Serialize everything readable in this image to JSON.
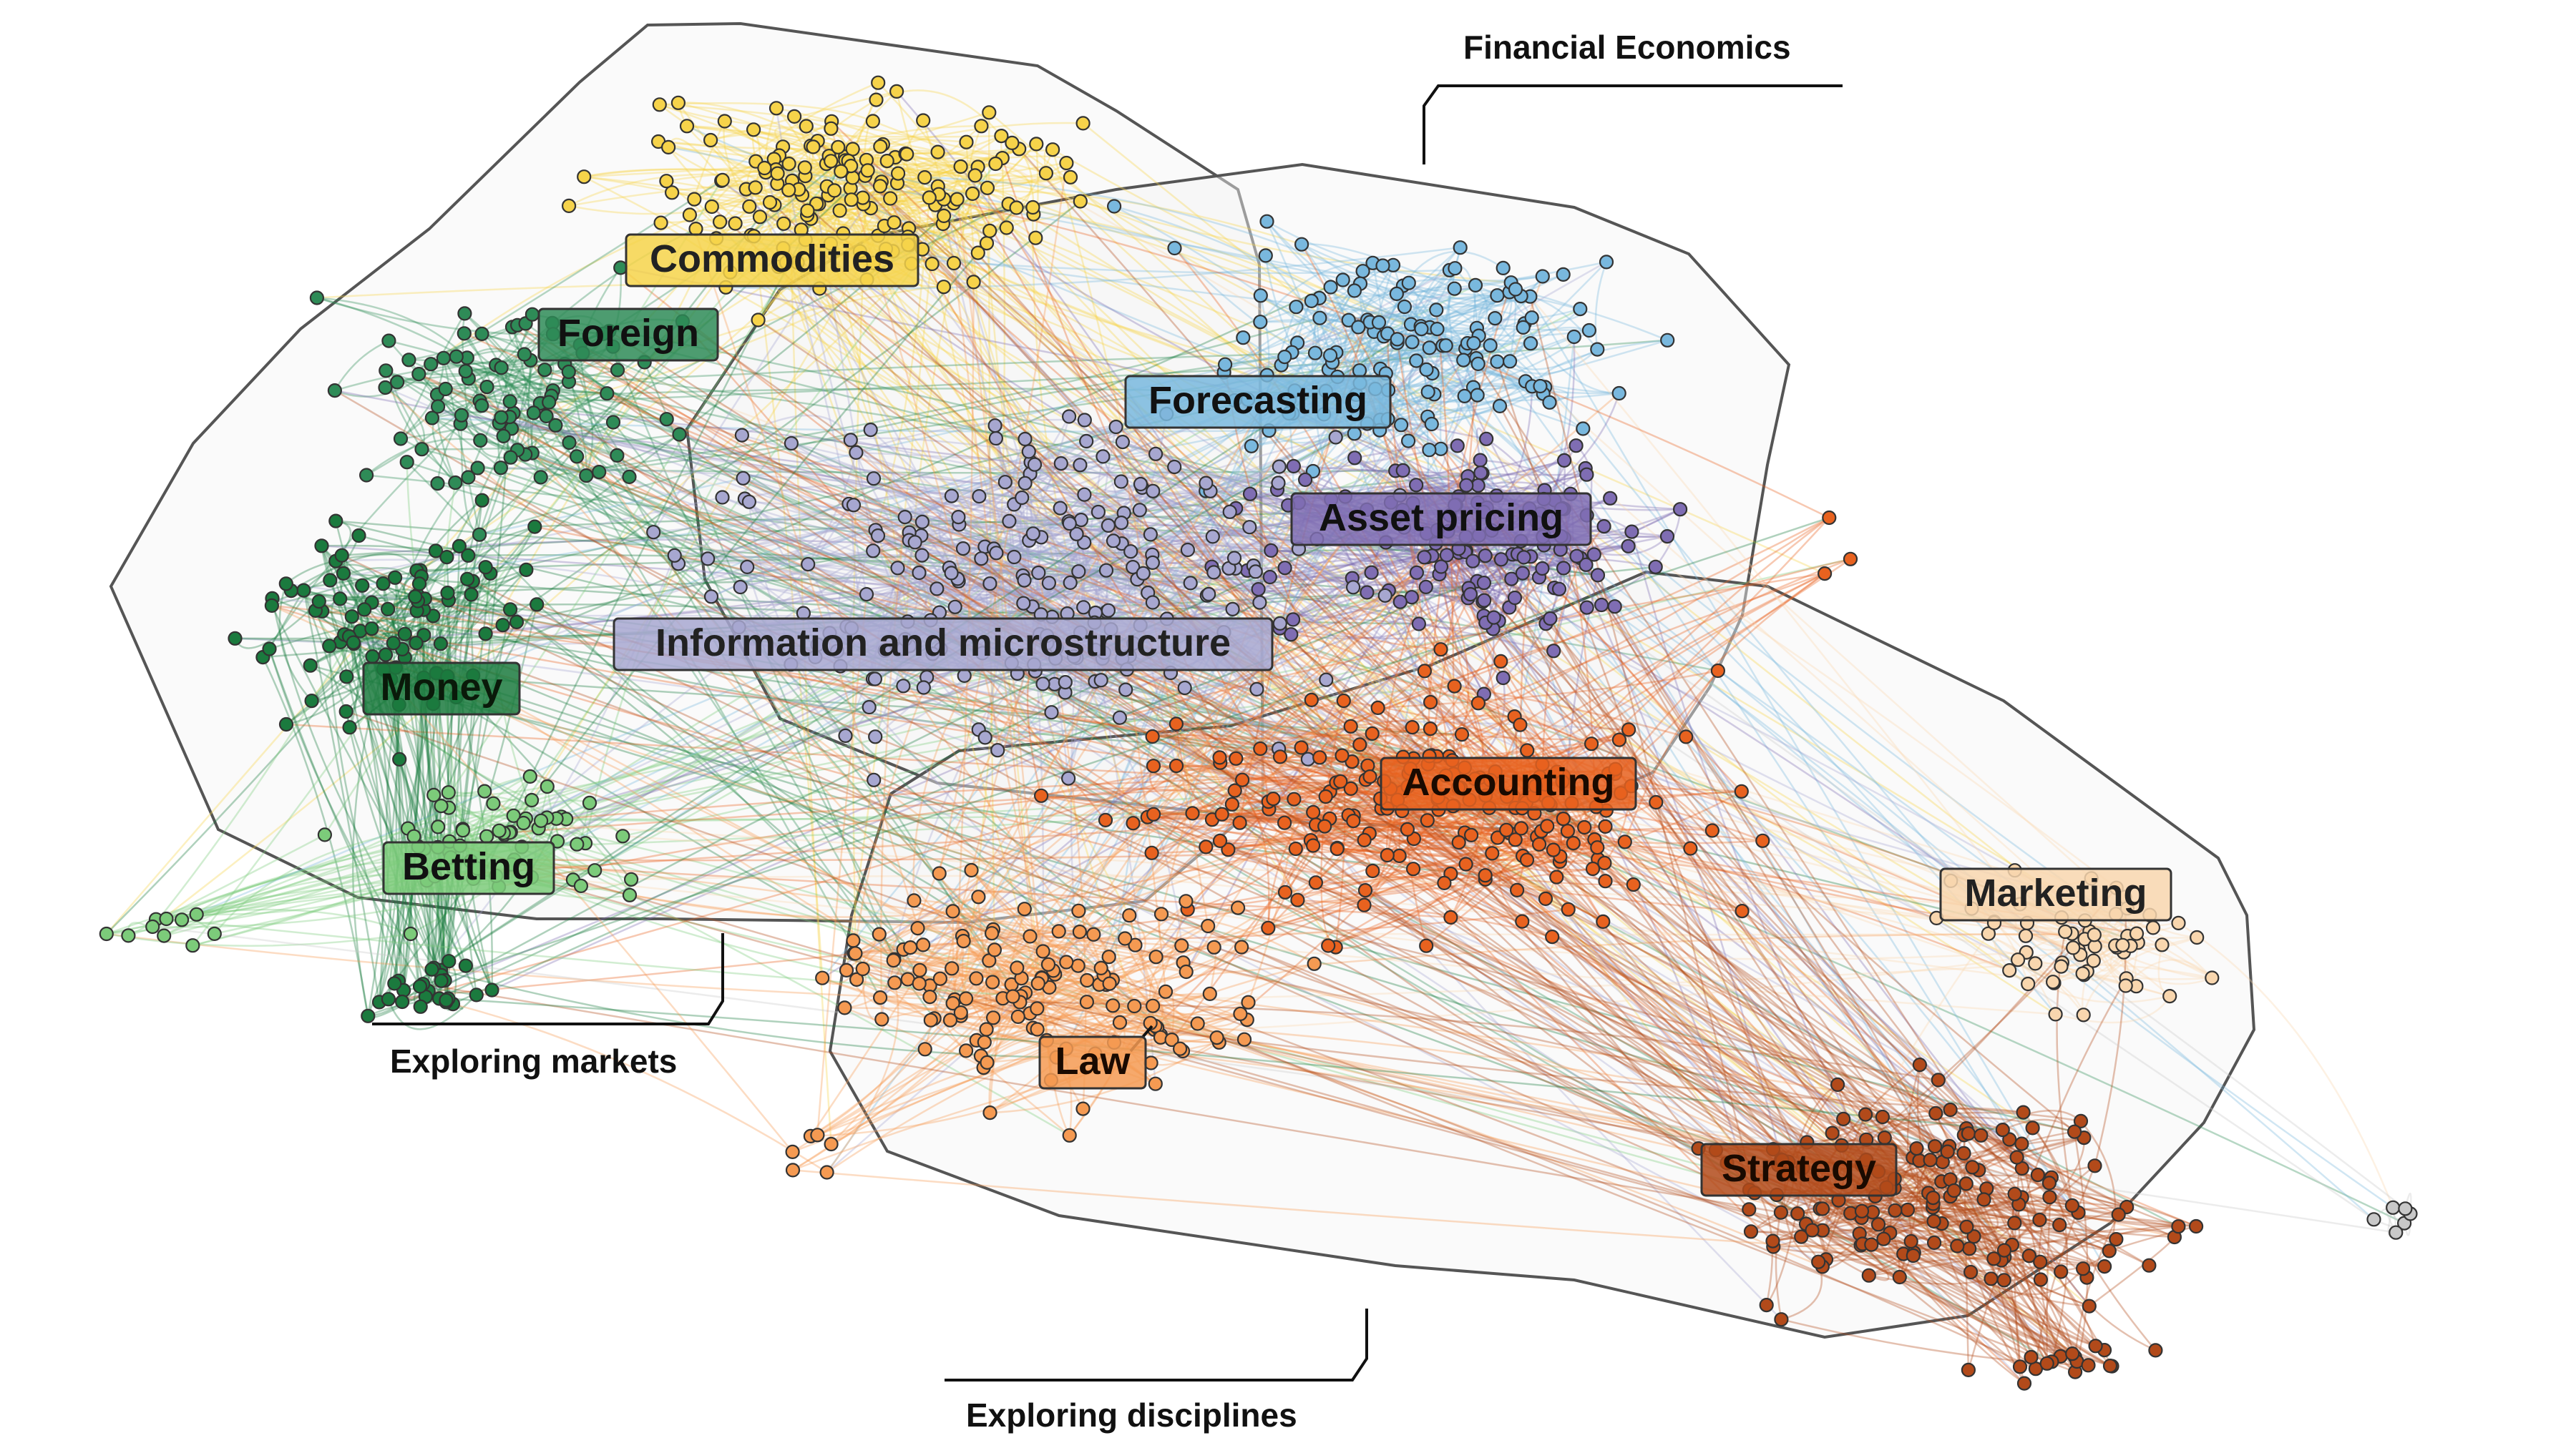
{
  "regions": [
    {
      "key": "exploring-markets",
      "name": "Exploring markets"
    },
    {
      "key": "financial-economics",
      "name": "Financial Economics"
    },
    {
      "key": "exploring-disciplines",
      "name": "Exploring disciplines"
    }
  ],
  "clusters": [
    {
      "key": "commodities",
      "label": "Commodities",
      "color": "#f6d34a",
      "text_color": "#222222"
    },
    {
      "key": "foreign",
      "label": "Foreign",
      "color": "#2e8b57",
      "text_color": "#111111"
    },
    {
      "key": "money",
      "label": "Money",
      "color": "#1b7a3e",
      "text_color": "#0a1a0a"
    },
    {
      "key": "betting",
      "label": "Betting",
      "color": "#7ccb7a",
      "text_color": "#111111"
    },
    {
      "key": "forecasting",
      "label": "Forecasting",
      "color": "#79b8de",
      "text_color": "#111111"
    },
    {
      "key": "asset-pricing",
      "label": "Asset pricing",
      "color": "#7f6db3",
      "text_color": "#111111"
    },
    {
      "key": "information",
      "label": "Information and microstructure",
      "color": "#a7a7d0",
      "text_color": "#222222"
    },
    {
      "key": "accounting",
      "label": "Accounting",
      "color": "#e8621f",
      "text_color": "#1a0a00"
    },
    {
      "key": "marketing",
      "label": "Marketing",
      "color": "#f8d6ae",
      "text_color": "#222222"
    },
    {
      "key": "law",
      "label": "Law",
      "color": "#f59a52",
      "text_color": "#1a0a00"
    },
    {
      "key": "strategy",
      "label": "Strategy",
      "color": "#b24a1a",
      "text_color": "#1a0a00"
    },
    {
      "key": "other",
      "label": "",
      "color": "#c8c8c8",
      "text_color": "#222222"
    }
  ]
}
